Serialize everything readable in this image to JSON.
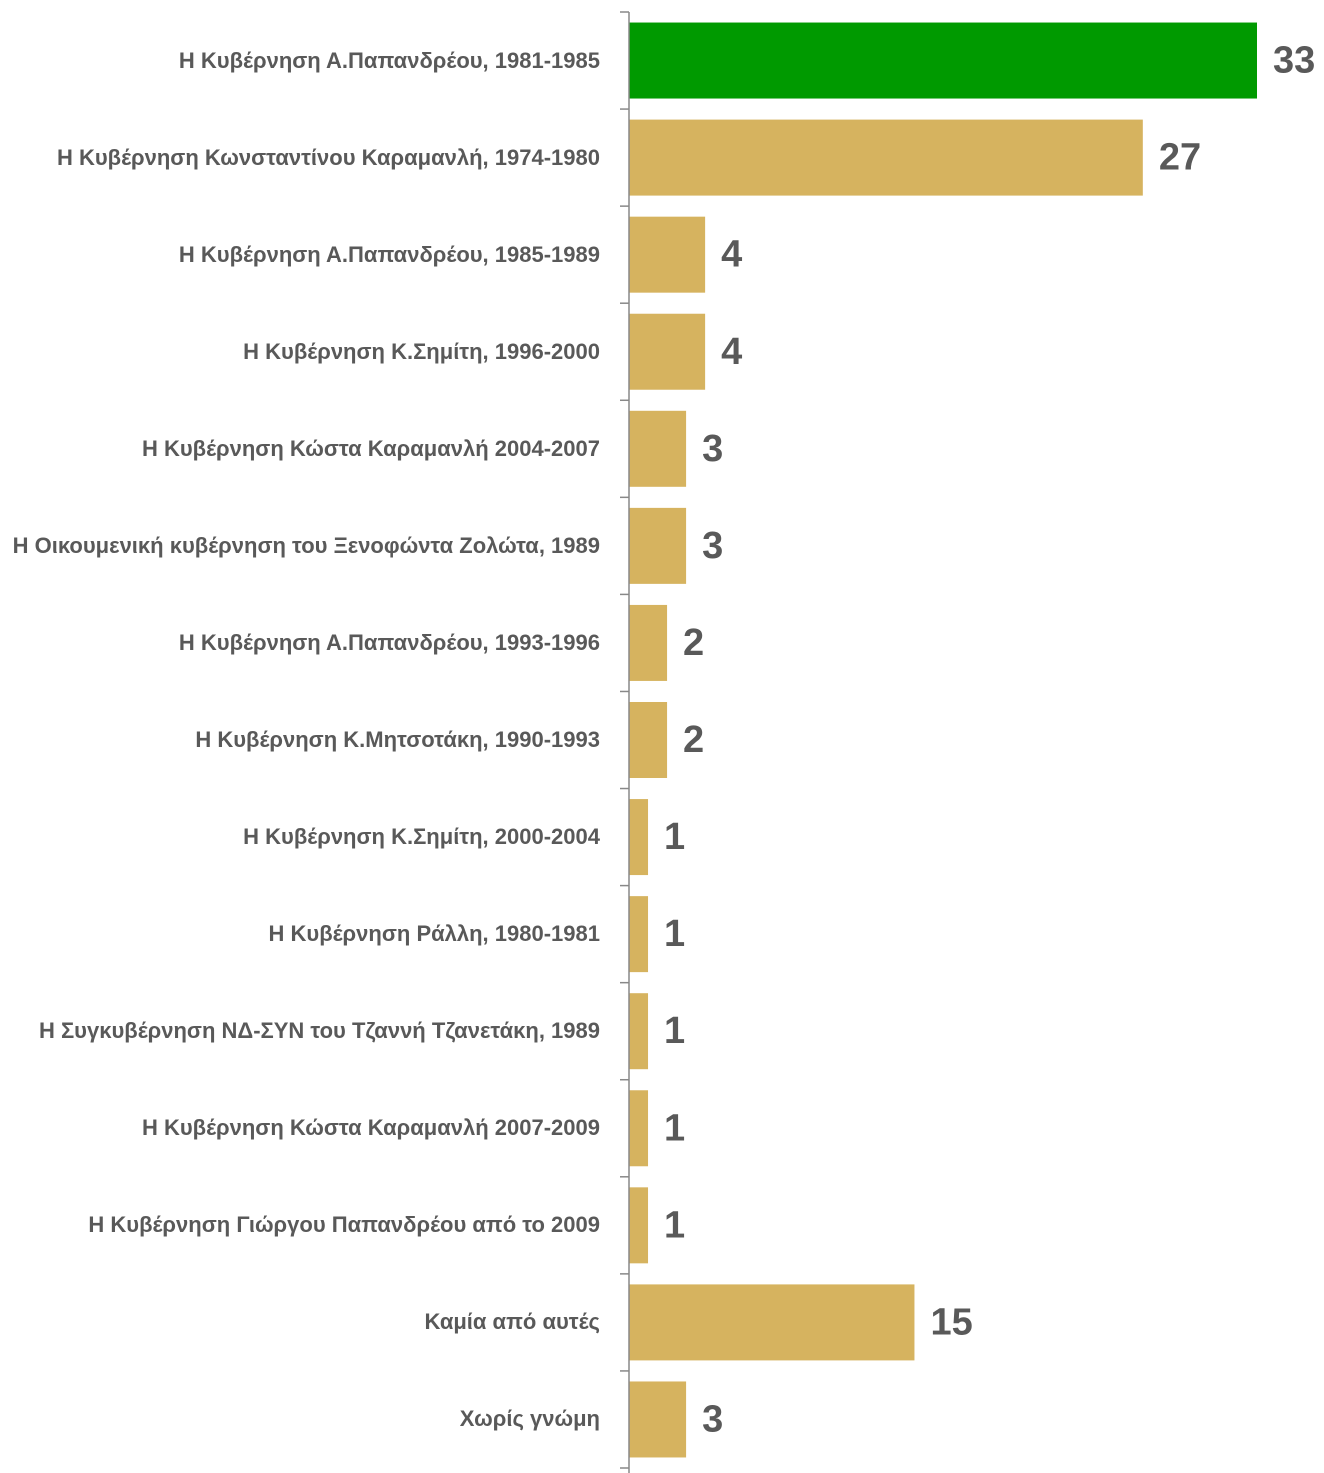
{
  "chart_data": {
    "type": "barh",
    "categories": [
      "Η Κυβέρνηση Α.Παπανδρέου, 1981-1985",
      "Η Κυβέρνηση Κωνσταντίνου Καραμανλή, 1974-1980",
      "Η Κυβέρνηση Α.Παπανδρέου, 1985-1989",
      "Η Κυβέρνηση Κ.Σημίτη, 1996-2000",
      "Η Κυβέρνηση Κώστα Καραμανλή 2004-2007",
      "Η Οικουμενική κυβέρνηση του Ξενοφώντα Ζολώτα, 1989",
      "Η Κυβέρνηση Α.Παπανδρέου, 1993-1996",
      "Η Κυβέρνηση Κ.Μητσοτάκη, 1990-1993",
      "Η Κυβέρνηση Κ.Σημίτη, 2000-2004",
      "Η Κυβέρνηση Ράλλη, 1980-1981",
      "Η Συγκυβέρνηση ΝΔ-ΣΥΝ του Τζαννή Τζανετάκη, 1989",
      "Η Κυβέρνηση Κώστα Καραμανλή 2007-2009",
      "Η Κυβέρνηση Γιώργου Παπανδρέου από το 2009",
      "Καμία από αυτές",
      "Χωρίς γνώμη"
    ],
    "values": [
      33,
      27,
      4,
      4,
      3,
      3,
      2,
      2,
      1,
      1,
      1,
      1,
      1,
      15,
      3
    ],
    "colors": [
      "#009a00",
      "#d6b35f",
      "#d6b35f",
      "#d6b35f",
      "#d6b35f",
      "#d6b35f",
      "#d6b35f",
      "#d6b35f",
      "#d6b35f",
      "#d6b35f",
      "#d6b35f",
      "#d6b35f",
      "#d6b35f",
      "#d6b35f",
      "#d6b35f"
    ],
    "xlim": [
      0,
      33
    ]
  }
}
